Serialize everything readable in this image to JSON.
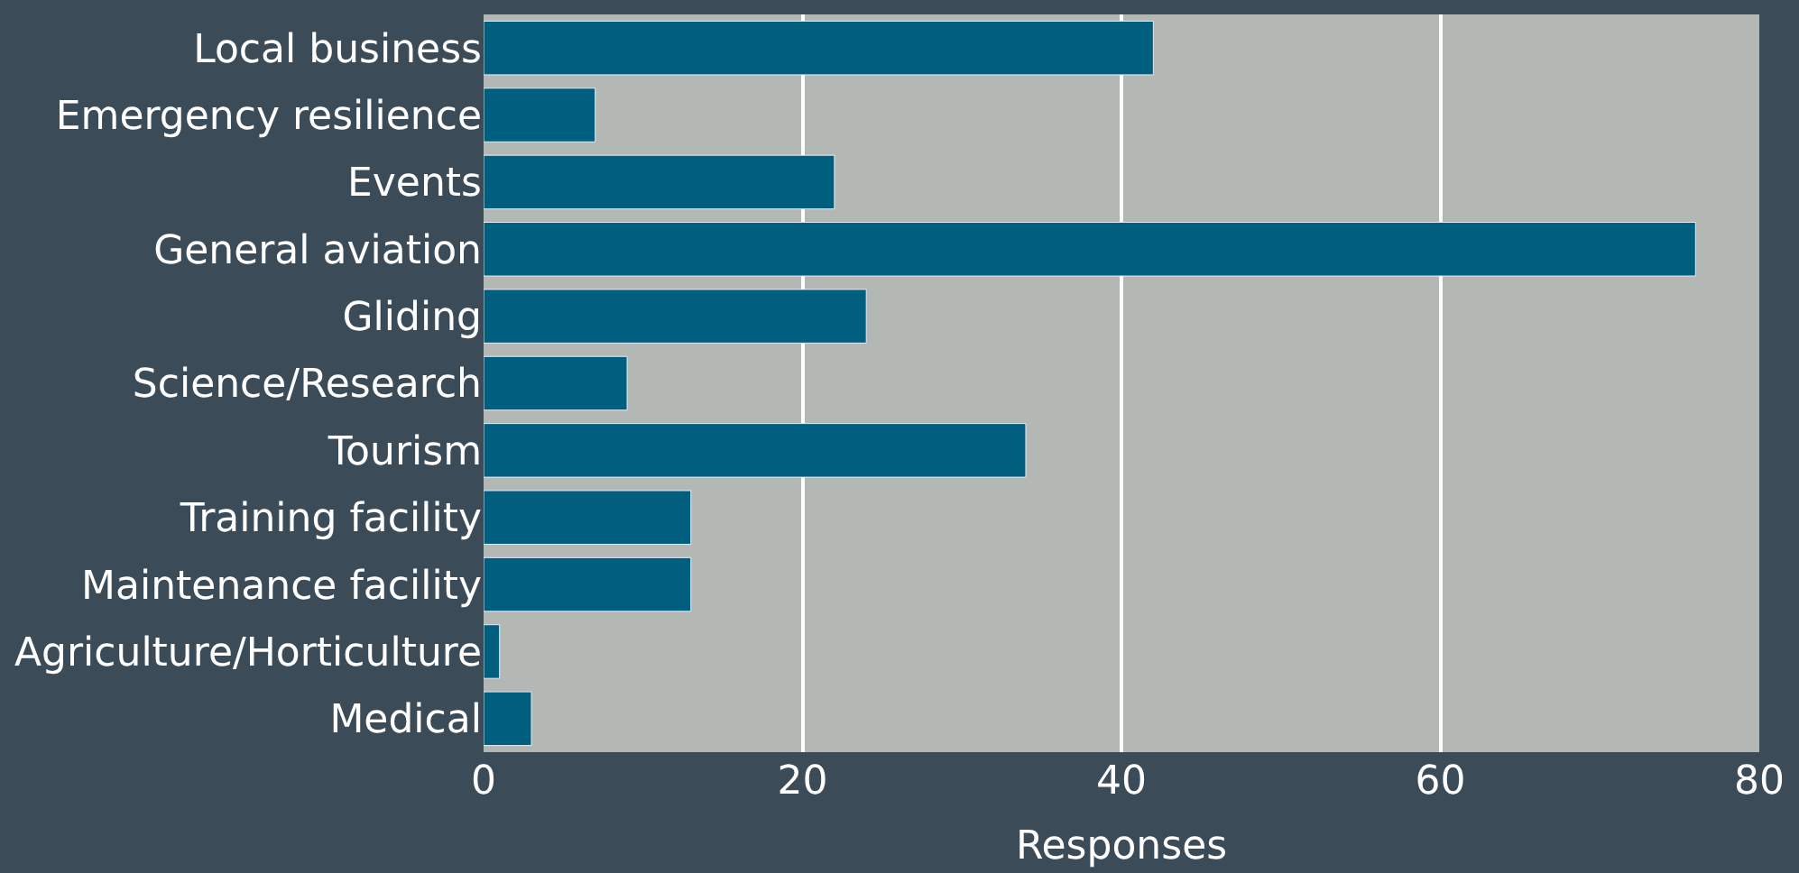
{
  "chart_data": {
    "type": "bar",
    "orientation": "horizontal",
    "xlabel": "Responses",
    "categories": [
      "Local business",
      "Emergency resilience",
      "Events",
      "General aviation",
      "Gliding",
      "Science/Research",
      "Tourism",
      "Training facility",
      "Maintenance facility",
      "Agriculture/Horticulture",
      "Medical"
    ],
    "values": [
      42,
      7,
      22,
      76,
      24,
      9,
      34,
      13,
      13,
      1,
      3
    ],
    "color": "#005f7f",
    "xlim": [
      0,
      80
    ],
    "xticks": [
      0,
      20,
      40,
      60,
      80
    ],
    "grid": "x",
    "legend": false
  }
}
